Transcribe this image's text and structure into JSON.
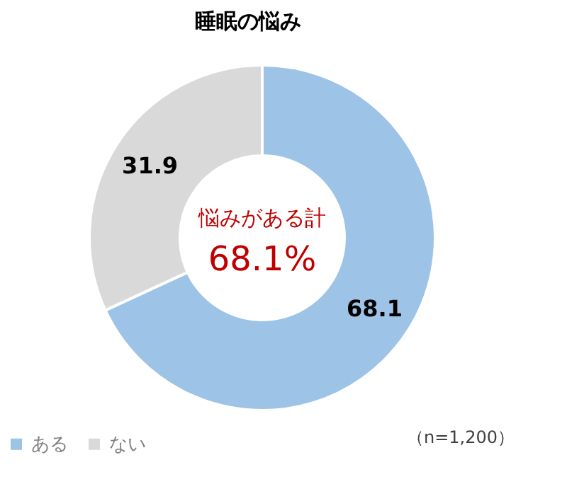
{
  "chart_data": {
    "type": "donut",
    "title": "睡眠の悩み",
    "categories": [
      "ある",
      "ない"
    ],
    "values": [
      68.1,
      31.9
    ],
    "colors": [
      "#9dc3e6",
      "#d9d9d9"
    ],
    "data_labels": true,
    "legend": "bottom",
    "annotations": [
      "悩みがある計",
      "68.1%",
      "（n=1,200）"
    ]
  }
}
